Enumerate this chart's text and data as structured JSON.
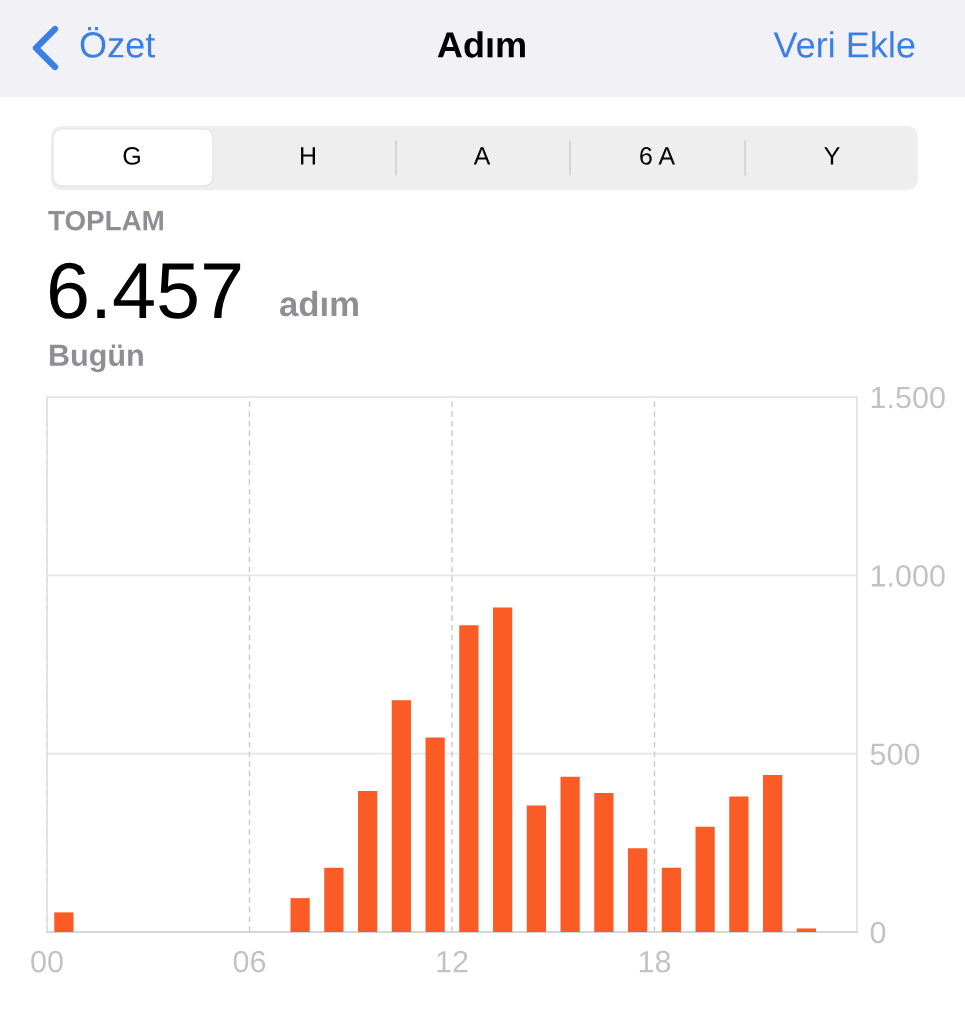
{
  "chart_data": {
    "type": "bar",
    "title": "Adım",
    "annotations": [
      "Özet",
      "Veri Ekle",
      "G",
      "H",
      "A",
      "6 A",
      "Y",
      "TOPLAM",
      "6.457",
      "adım",
      "Bugün"
    ],
    "x": [
      0.5,
      7.5,
      8.5,
      9.5,
      10.5,
      11.5,
      12.5,
      13.5,
      14.5,
      15.5,
      16.5,
      17.5,
      18.5,
      19.5,
      20.5,
      21.5,
      22.5
    ],
    "values": [
      55,
      95,
      180,
      395,
      650,
      545,
      860,
      910,
      355,
      435,
      390,
      235,
      180,
      295,
      380,
      440,
      10
    ],
    "color": "#fb5b25",
    "xlim": [
      0,
      24
    ],
    "xticks": [
      {
        "value": 0,
        "label": "00"
      },
      {
        "value": 6,
        "label": "06"
      },
      {
        "value": 12,
        "label": "12"
      },
      {
        "value": 18,
        "label": "18"
      }
    ],
    "ylim": [
      0,
      1500
    ],
    "yticks": [
      0,
      500,
      {
        "value": 1000,
        "label": "1.000"
      },
      {
        "value": 1500,
        "label": "1.500"
      }
    ],
    "grid": true
  }
}
